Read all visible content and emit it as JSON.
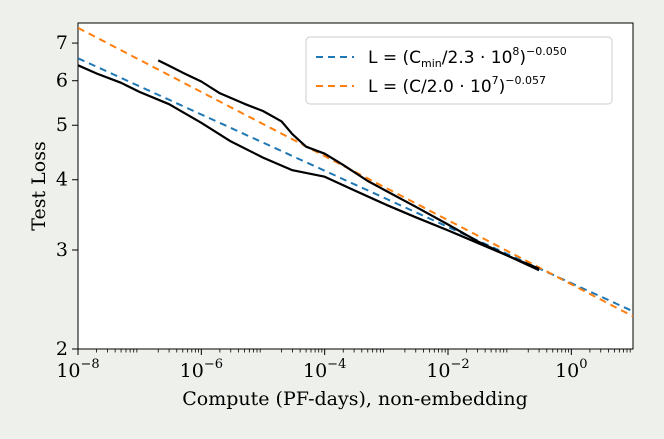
{
  "chart_data": {
    "type": "line",
    "xlabel": "Compute (PF-days), non-embedding",
    "ylabel": "Test Loss",
    "x_scale": "log",
    "y_scale": "log",
    "xlim": [
      1e-08,
      10
    ],
    "ylim": [
      2,
      7.6
    ],
    "x_ticks": [
      {
        "value": 1e-08,
        "base": "10",
        "exp": "−8"
      },
      {
        "value": 1e-06,
        "base": "10",
        "exp": "−6"
      },
      {
        "value": 0.0001,
        "base": "10",
        "exp": "−4"
      },
      {
        "value": 0.01,
        "base": "10",
        "exp": "−2"
      },
      {
        "value": 1,
        "base": "10",
        "exp": "0"
      }
    ],
    "y_ticks": [
      {
        "value": 2,
        "label": "2"
      },
      {
        "value": 3,
        "label": "3"
      },
      {
        "value": 4,
        "label": "4"
      },
      {
        "value": 5,
        "label": "5"
      },
      {
        "value": 6,
        "label": "6"
      },
      {
        "value": 7,
        "label": "7"
      }
    ],
    "grid": false,
    "legend_position": "top-right",
    "series": [
      {
        "name": "L = (Cmin/2.3 · 10^8)^−0.050",
        "legend": {
          "prefix": "L = (C",
          "sub": "min",
          "mid": "/2.3 · 10",
          "sup1": "8",
          "close": ")",
          "sup2": "−0.050"
        },
        "style": "dashed",
        "color": "#1f77b4",
        "fit": {
          "form": "(C / c0)^-a",
          "c0": 230000000.0,
          "a": 0.05
        }
      },
      {
        "name": "L = (C/2.0 · 10^7)^−0.057",
        "legend": {
          "prefix": "L = (C",
          "sub": "",
          "mid": "/2.0 · 10",
          "sup1": "7",
          "close": ")",
          "sup2": "−0.057"
        },
        "style": "dashed",
        "color": "#ff7f0e",
        "fit": {
          "form": "(C / c0)^-a",
          "c0": 20000000.0,
          "a": 0.057
        }
      },
      {
        "name": "",
        "style": "solid",
        "color": "#000000",
        "x": [
          1e-08,
          2e-08,
          5e-08,
          1e-07,
          3e-07,
          1e-06,
          3e-06,
          1e-05,
          3e-05,
          0.0001,
          0.0003,
          0.001,
          0.003,
          0.01,
          0.03,
          0.1,
          0.3
        ],
        "y": [
          6.39,
          6.18,
          5.95,
          5.73,
          5.45,
          5.05,
          4.68,
          4.38,
          4.16,
          4.05,
          3.83,
          3.61,
          3.43,
          3.25,
          3.09,
          2.92,
          2.78
        ]
      },
      {
        "name": "",
        "style": "solid",
        "color": "#000000",
        "x": [
          2e-07,
          3e-07,
          5e-07,
          1e-06,
          2e-06,
          5e-06,
          1e-05,
          2e-05,
          3e-05,
          5e-05,
          0.0001,
          0.0002,
          0.0005,
          0.001,
          0.003,
          0.01,
          0.03,
          0.1,
          0.3
        ],
        "y": [
          6.52,
          6.38,
          6.2,
          5.98,
          5.7,
          5.46,
          5.3,
          5.08,
          4.82,
          4.58,
          4.45,
          4.25,
          3.98,
          3.82,
          3.58,
          3.33,
          3.11,
          2.92,
          2.76
        ]
      }
    ]
  }
}
